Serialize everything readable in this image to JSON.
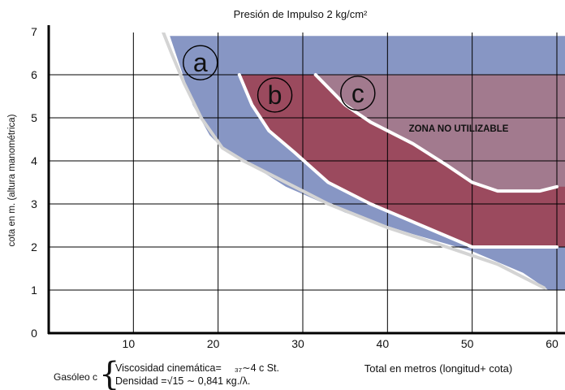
{
  "chart_data": {
    "type": "area",
    "title": "Presión de Impulso 2 kg/cm²",
    "ylabel": "cota en m. (altura manométrica)",
    "xlabel": "Total en metros (longitud+ cota)",
    "xlim": [
      0,
      60
    ],
    "ylim": [
      0,
      7
    ],
    "x_ticks": [
      "10",
      "20",
      "30",
      "40",
      "50",
      "60"
    ],
    "y_ticks": [
      "0",
      "1",
      "2",
      "3",
      "4",
      "5",
      "6",
      "7"
    ],
    "grid": true,
    "colors": {
      "zone_a": "#8796c4",
      "zone_b": "#9b4a5e",
      "zone_c": "#a27a8e",
      "curve": "#ffffff",
      "lower_curve": "#d4d4d4"
    },
    "series": [
      {
        "label": "a",
        "color": "#8796c4",
        "upper_y": 6.9,
        "boundary": [
          [
            14.3,
            6.9
          ],
          [
            15.5,
            6.2
          ],
          [
            17,
            5.3
          ],
          [
            19,
            4.6
          ],
          [
            21,
            4.2
          ],
          [
            24,
            3.9
          ],
          [
            28,
            3.4
          ],
          [
            35,
            2.8
          ],
          [
            43,
            2.3
          ],
          [
            50,
            1.9
          ],
          [
            56,
            1.4
          ],
          [
            59,
            1.0
          ],
          [
            60,
            1.0
          ]
        ]
      },
      {
        "label": "b",
        "color": "#9b4a5e",
        "upper_y": 6.0,
        "boundary": [
          [
            22.5,
            6.0
          ],
          [
            24,
            5.3
          ],
          [
            26,
            4.7
          ],
          [
            29,
            4.2
          ],
          [
            33,
            3.5
          ],
          [
            38,
            3.0
          ],
          [
            44,
            2.5
          ],
          [
            50,
            2.0
          ],
          [
            60,
            2.0
          ]
        ]
      },
      {
        "label": "c",
        "color": "#a27a8e",
        "upper_y": 6.0,
        "boundary": [
          [
            31.5,
            6.0
          ],
          [
            35,
            5.3
          ],
          [
            38,
            4.9
          ],
          [
            43,
            4.4
          ],
          [
            47,
            3.9
          ],
          [
            50,
            3.5
          ],
          [
            53,
            3.3
          ],
          [
            58,
            3.3
          ],
          [
            60,
            3.4
          ]
        ]
      }
    ],
    "lower_curve": [
      [
        13.5,
        7.0
      ],
      [
        14.5,
        6.5
      ],
      [
        16,
        5.8
      ],
      [
        18,
        5.0
      ],
      [
        20.5,
        4.3
      ],
      [
        23,
        4.0
      ],
      [
        27,
        3.6
      ],
      [
        33,
        3.0
      ],
      [
        40,
        2.45
      ],
      [
        47,
        2.0
      ],
      [
        53,
        1.6
      ],
      [
        58.5,
        1.05
      ]
    ],
    "annotations": [
      "ZONA NO UTILIZABLE"
    ]
  },
  "footnote": {
    "fuel": "Gasóleo c",
    "brace": "{",
    "line1": "Viscosidad cinemática=  ₃₇∼4 c St.",
    "line2": "Densidad =√15 ∼ 0,841 κg./λ."
  }
}
